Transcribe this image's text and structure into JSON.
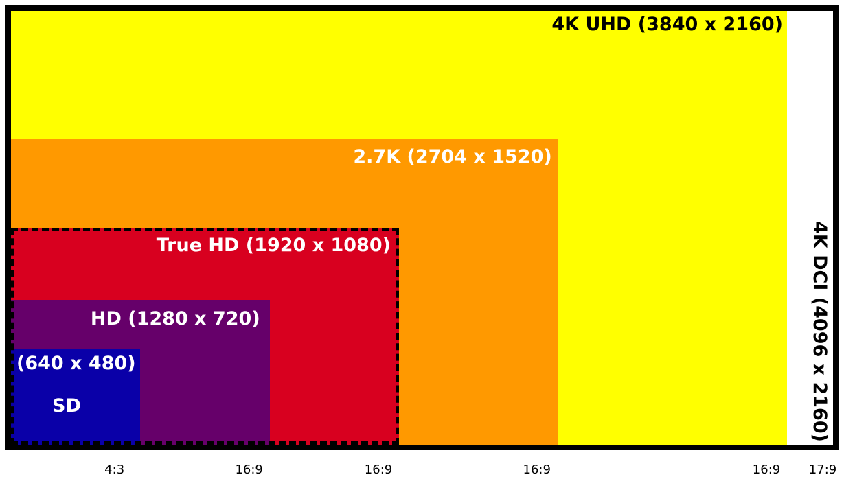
{
  "colors": {
    "uhd": "#ffff00",
    "k27": "#ff9900",
    "truehd": "#d8001f",
    "hd": "#66006a",
    "sd": "#0a00a8",
    "frame": "#000000"
  },
  "resolutions": {
    "dci": {
      "label": "4K DCI (4096 x 2160)",
      "width": 4096,
      "height": 2160,
      "ratio": "17:9"
    },
    "uhd": {
      "label": "4K UHD (3840 x 2160)",
      "width": 3840,
      "height": 2160,
      "ratio": "16:9"
    },
    "k27": {
      "label": "2.7K (2704 x 1520)",
      "width": 2704,
      "height": 1520,
      "ratio": "16:9"
    },
    "truehd": {
      "label": "True HD (1920 x 1080)",
      "width": 1920,
      "height": 1080,
      "ratio": "16:9"
    },
    "hd": {
      "label": "HD (1280 x 720)",
      "width": 1280,
      "height": 720,
      "ratio": "16:9"
    },
    "sd": {
      "label": "(640 x 480)",
      "name": "SD",
      "width": 640,
      "height": 480,
      "ratio": "4:3"
    }
  }
}
